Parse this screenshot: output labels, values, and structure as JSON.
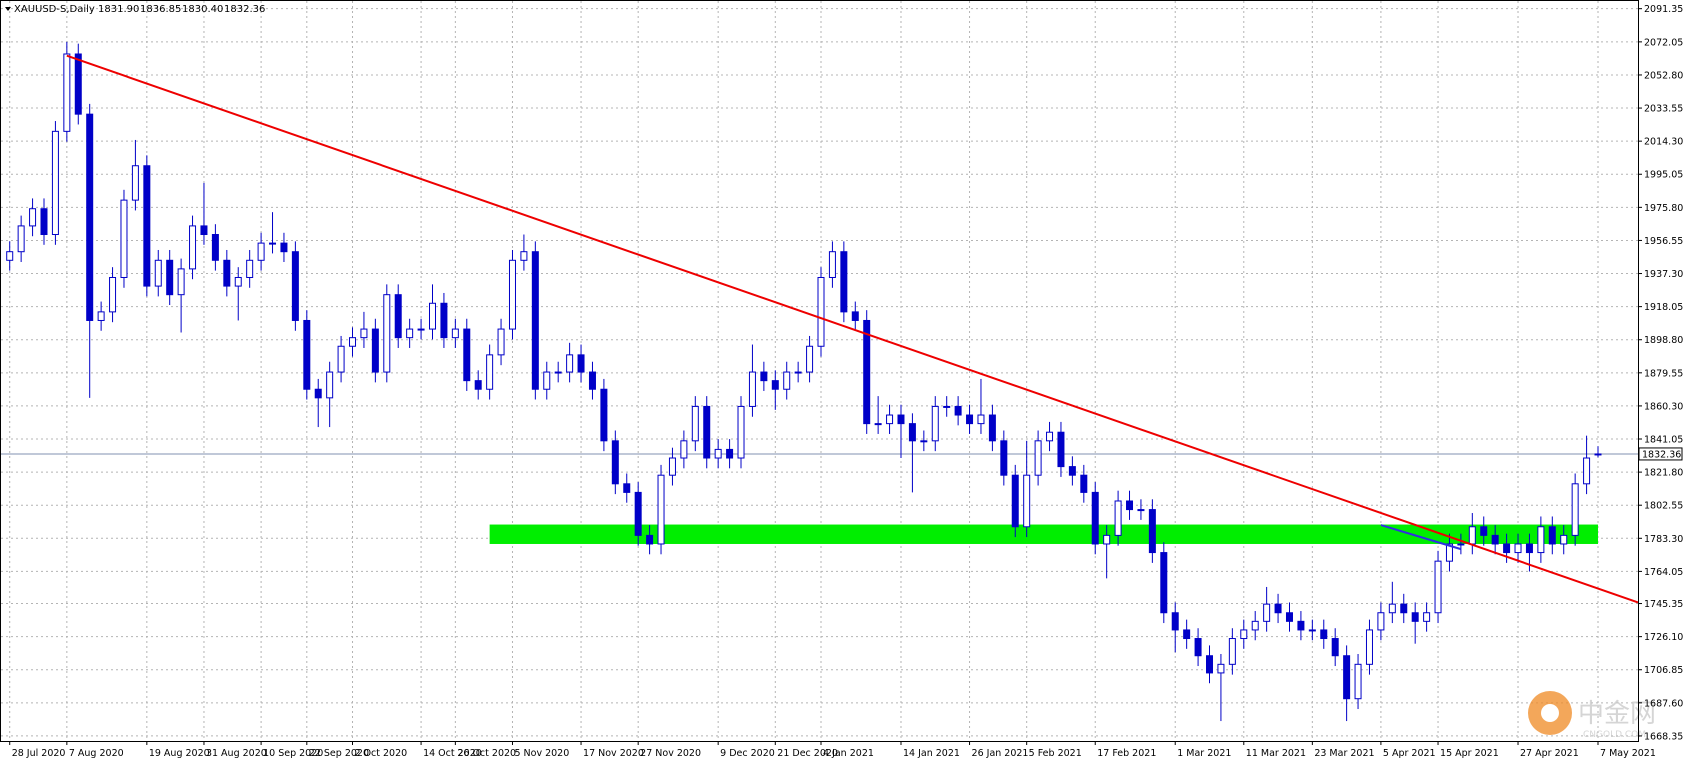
{
  "chart_data": {
    "type": "candlestick",
    "title": "XAUUSD-S,Daily",
    "header_values": [
      "1831.90",
      "1836.85",
      "1830.40",
      "1832.36"
    ],
    "color": "#0000c8",
    "up_fill": "#ffffff",
    "grid": true,
    "grid_color": "#b4b4b4",
    "open": [
      1945,
      1950,
      1965,
      1975,
      1960,
      2020,
      2065,
      2030,
      1910,
      1915,
      1935,
      1980,
      2000,
      1930,
      1945,
      1925,
      1940,
      1965,
      1960,
      1945,
      1930,
      1935,
      1945,
      1955,
      1955,
      1950,
      1910,
      1870,
      1865,
      1880,
      1895,
      1900,
      1905,
      1880,
      1925,
      1900,
      1905,
      1905,
      1920,
      1900,
      1905,
      1875,
      1870,
      1890,
      1905,
      1945,
      1950,
      1870,
      1880,
      1880,
      1890,
      1880,
      1870,
      1840,
      1815,
      1810,
      1785,
      1780,
      1820,
      1830,
      1840,
      1860,
      1830,
      1835,
      1830,
      1860,
      1880,
      1875,
      1870,
      1880,
      1880,
      1895,
      1935,
      1950,
      1915,
      1910,
      1850,
      1850,
      1855,
      1850,
      1840,
      1840,
      1860,
      1860,
      1855,
      1850,
      1855,
      1840,
      1820,
      1790,
      1820,
      1840,
      1845,
      1825,
      1820,
      1810,
      1780,
      1785,
      1805,
      1800,
      1800,
      1775,
      1740,
      1730,
      1725,
      1715,
      1705,
      1710,
      1725,
      1730,
      1735,
      1745,
      1740,
      1735,
      1730,
      1730,
      1725,
      1715,
      1690,
      1710,
      1730,
      1740,
      1745,
      1740,
      1735,
      1740,
      1770,
      1780,
      1780,
      1790,
      1785,
      1780,
      1775,
      1780,
      1775,
      1790,
      1780,
      1785,
      1815,
      1831.9
    ],
    "high": [
      1956,
      1971,
      1981,
      1981,
      2026,
      2072,
      2071,
      2036,
      1921,
      1941,
      1986,
      2015,
      2006,
      1951,
      1951,
      1946,
      1971,
      1990,
      1966,
      1951,
      1941,
      1951,
      1961,
      1973,
      1961,
      1956,
      1916,
      1876,
      1886,
      1901,
      1906,
      1915,
      1911,
      1931,
      1931,
      1911,
      1911,
      1931,
      1926,
      1911,
      1911,
      1881,
      1896,
      1911,
      1951,
      1960,
      1956,
      1886,
      1886,
      1897,
      1896,
      1886,
      1876,
      1846,
      1821,
      1816,
      1791,
      1826,
      1836,
      1846,
      1866,
      1866,
      1841,
      1841,
      1866,
      1896,
      1886,
      1881,
      1886,
      1886,
      1901,
      1941,
      1956,
      1956,
      1921,
      1916,
      1866,
      1861,
      1861,
      1856,
      1846,
      1866,
      1866,
      1866,
      1861,
      1876,
      1861,
      1846,
      1826,
      1840,
      1846,
      1851,
      1851,
      1831,
      1826,
      1816,
      1791,
      1811,
      1811,
      1806,
      1806,
      1781,
      1746,
      1736,
      1731,
      1721,
      1716,
      1731,
      1736,
      1741,
      1755,
      1751,
      1746,
      1741,
      1736,
      1736,
      1731,
      1721,
      1716,
      1736,
      1746,
      1758,
      1751,
      1746,
      1746,
      1776,
      1786,
      1786,
      1798,
      1796,
      1791,
      1786,
      1786,
      1786,
      1796,
      1796,
      1791,
      1821,
      1843,
      1836.85
    ],
    "low": [
      1939,
      1944,
      1959,
      1954,
      1954,
      2014,
      2024,
      1865,
      1904,
      1909,
      1929,
      1974,
      1924,
      1924,
      1919,
      1903,
      1934,
      1954,
      1939,
      1924,
      1910,
      1929,
      1939,
      1949,
      1944,
      1904,
      1864,
      1848,
      1848,
      1874,
      1889,
      1894,
      1874,
      1874,
      1894,
      1894,
      1899,
      1899,
      1894,
      1894,
      1869,
      1864,
      1864,
      1884,
      1899,
      1939,
      1864,
      1864,
      1874,
      1874,
      1874,
      1864,
      1834,
      1809,
      1804,
      1779,
      1774,
      1774,
      1814,
      1824,
      1834,
      1824,
      1824,
      1824,
      1824,
      1854,
      1869,
      1858,
      1864,
      1874,
      1874,
      1889,
      1929,
      1909,
      1904,
      1844,
      1844,
      1844,
      1830,
      1810,
      1834,
      1834,
      1854,
      1849,
      1844,
      1844,
      1834,
      1814,
      1784,
      1784,
      1814,
      1834,
      1819,
      1814,
      1804,
      1774,
      1760,
      1779,
      1794,
      1794,
      1769,
      1734,
      1717,
      1719,
      1709,
      1699,
      1677,
      1704,
      1719,
      1724,
      1729,
      1734,
      1729,
      1724,
      1724,
      1719,
      1709,
      1677,
      1684,
      1704,
      1724,
      1734,
      1734,
      1722,
      1729,
      1734,
      1764,
      1774,
      1774,
      1779,
      1774,
      1769,
      1769,
      1764,
      1769,
      1774,
      1774,
      1779,
      1809,
      1830.4
    ],
    "close": [
      1950,
      1965,
      1975,
      1960,
      2020,
      2065,
      2030,
      1910,
      1915,
      1935,
      1980,
      2000,
      1930,
      1945,
      1925,
      1940,
      1965,
      1960,
      1945,
      1930,
      1935,
      1945,
      1955,
      1955,
      1950,
      1910,
      1870,
      1865,
      1880,
      1895,
      1900,
      1905,
      1880,
      1925,
      1900,
      1905,
      1905,
      1920,
      1900,
      1905,
      1875,
      1870,
      1890,
      1905,
      1945,
      1950,
      1870,
      1880,
      1880,
      1890,
      1880,
      1870,
      1840,
      1815,
      1810,
      1785,
      1780,
      1820,
      1830,
      1840,
      1860,
      1830,
      1835,
      1830,
      1860,
      1880,
      1875,
      1870,
      1880,
      1880,
      1895,
      1935,
      1950,
      1915,
      1910,
      1850,
      1850,
      1855,
      1850,
      1840,
      1840,
      1860,
      1860,
      1855,
      1850,
      1855,
      1840,
      1820,
      1790,
      1820,
      1840,
      1845,
      1825,
      1820,
      1810,
      1780,
      1785,
      1805,
      1800,
      1800,
      1775,
      1740,
      1730,
      1725,
      1715,
      1705,
      1710,
      1725,
      1730,
      1735,
      1745,
      1740,
      1735,
      1730,
      1730,
      1725,
      1715,
      1690,
      1710,
      1730,
      1740,
      1745,
      1740,
      1735,
      1740,
      1770,
      1780,
      1780,
      1790,
      1785,
      1780,
      1775,
      1780,
      1775,
      1790,
      1780,
      1785,
      1815,
      1830,
      1832.36
    ],
    "slots": 143,
    "x_labels": [
      {
        "index": 0,
        "label": "28 Jul 2020"
      },
      {
        "index": 5,
        "label": "7 Aug 2020"
      },
      {
        "index": 12,
        "label": "19 Aug 2020"
      },
      {
        "index": 17,
        "label": "31 Aug 2020"
      },
      {
        "index": 22,
        "label": "10 Sep 2020"
      },
      {
        "index": 26,
        "label": "22 Sep 2020"
      },
      {
        "index": 30,
        "label": "2 Oct 2020"
      },
      {
        "index": 36,
        "label": "14 Oct 2020"
      },
      {
        "index": 39,
        "label": "26 Oct 2020"
      },
      {
        "index": 44,
        "label": "5 Nov 2020"
      },
      {
        "index": 50,
        "label": "17 Nov 2020"
      },
      {
        "index": 55,
        "label": "27 Nov 2020"
      },
      {
        "index": 62,
        "label": "9 Dec 2020"
      },
      {
        "index": 67,
        "label": "21 Dec 2020"
      },
      {
        "index": 71,
        "label": "4 Jan 2021"
      },
      {
        "index": 78,
        "label": "14 Jan 2021"
      },
      {
        "index": 84,
        "label": "26 Jan 2021"
      },
      {
        "index": 89,
        "label": "5 Feb 2021"
      },
      {
        "index": 95,
        "label": "17 Feb 2021"
      },
      {
        "index": 102,
        "label": "1 Mar 2021"
      },
      {
        "index": 108,
        "label": "11 Mar 2021"
      },
      {
        "index": 114,
        "label": "23 Mar 2021"
      },
      {
        "index": 120,
        "label": "5 Apr 2021"
      },
      {
        "index": 125,
        "label": "15 Apr 2021"
      },
      {
        "index": 132,
        "label": "27 Apr 2021"
      },
      {
        "index": 139,
        "label": "7 May 2021"
      }
    ],
    "ylim": [
      1665.4,
      2096.4
    ],
    "yticks": [
      2091.35,
      2072.05,
      {
        "value": 2052.8,
        "label": "2052.80"
      },
      2033.55,
      {
        "value": 2014.3,
        "label": "2014.30"
      },
      1995.05,
      {
        "value": 1975.8,
        "label": "1975.80"
      },
      1956.55,
      {
        "value": 1937.3,
        "label": "1937.30"
      },
      1918.05,
      {
        "value": 1898.8,
        "label": "1898.80"
      },
      1879.55,
      {
        "value": 1860.3,
        "label": "1860.30"
      },
      1841.05,
      {
        "value": 1821.8,
        "label": "1821.80"
      },
      1802.55,
      {
        "value": 1783.3,
        "label": "1783.30"
      },
      1764.05,
      1745.35,
      {
        "value": 1726.1,
        "label": "1726.10"
      },
      1706.85,
      {
        "value": 1687.6,
        "label": "1687.60"
      },
      1668.35
    ],
    "zones": [
      {
        "color": "#00ee00",
        "x": [
          42,
          139
        ],
        "y": [
          1780,
          1791.3
        ]
      }
    ],
    "lines": [
      {
        "color": "#ee0000",
        "x": [
          5,
          142.5
        ],
        "y": [
          2064,
          1746
        ]
      },
      {
        "color": "#3030e0",
        "x": [
          120,
          127
        ],
        "y": [
          1791,
          1777
        ]
      }
    ],
    "price_line_color": "#8090b0",
    "watermark": [
      "中金网",
      "CNGOLD.COM"
    ]
  }
}
